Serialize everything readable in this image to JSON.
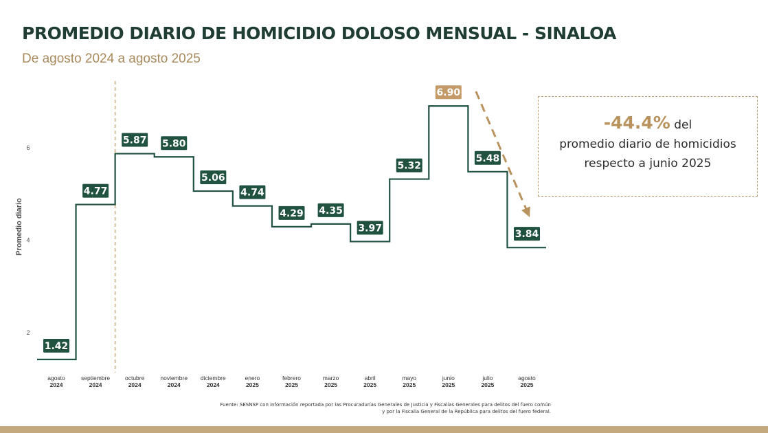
{
  "title": "PROMEDIO DIARIO DE HOMICIDIO DOLOSO MENSUAL - SINALOA",
  "subtitle": "De agosto 2024 a agosto 2025",
  "callout": {
    "value": "-44.4%",
    "text1": "del",
    "text2": "promedio diario de homicidios",
    "text3": "respecto a junio 2025"
  },
  "footer": {
    "line1": "Fuente: SESNSP con información reportada por las Procuradurías Generales de Justicia y Fiscalías Generales para delitos del fuero común",
    "line2": "y por la Fiscalía General de la República para delitos del fuero federal."
  },
  "colors": {
    "line": "#21523f",
    "label_bg": "#21523f",
    "highlight_bg": "#c49a68",
    "accent": "#b8935e",
    "title": "#1f3d33"
  },
  "chart_data": {
    "type": "line",
    "step": true,
    "ylabel": "Promedio diario",
    "xlabel": "",
    "ylim": [
      1.2,
      7.3
    ],
    "yticks": [
      2,
      4,
      6
    ],
    "categories": [
      {
        "month": "agosto",
        "year": "2024"
      },
      {
        "month": "septiembre",
        "year": "2024"
      },
      {
        "month": "octubre",
        "year": "2024"
      },
      {
        "month": "noviembre",
        "year": "2024"
      },
      {
        "month": "diciembre",
        "year": "2024"
      },
      {
        "month": "enero",
        "year": "2025"
      },
      {
        "month": "febrero",
        "year": "2025"
      },
      {
        "month": "marzo",
        "year": "2025"
      },
      {
        "month": "abril",
        "year": "2025"
      },
      {
        "month": "mayo",
        "year": "2025"
      },
      {
        "month": "junio",
        "year": "2025"
      },
      {
        "month": "julio",
        "year": "2025"
      },
      {
        "month": "agosto",
        "year": "2025"
      }
    ],
    "values": [
      1.42,
      4.77,
      5.87,
      5.8,
      5.06,
      4.74,
      4.29,
      4.35,
      3.97,
      5.32,
      6.9,
      5.48,
      3.84
    ],
    "labels": [
      "1.42",
      "4.77",
      "5.87",
      "5.80",
      "5.06",
      "4.74",
      "4.29",
      "4.35",
      "3.97",
      "5.32",
      "6.90",
      "5.48",
      "3.84"
    ],
    "highlight_index": 10,
    "divider_after_index": 1,
    "trend_arrow": {
      "from_index": 10,
      "to_index": 12
    }
  }
}
